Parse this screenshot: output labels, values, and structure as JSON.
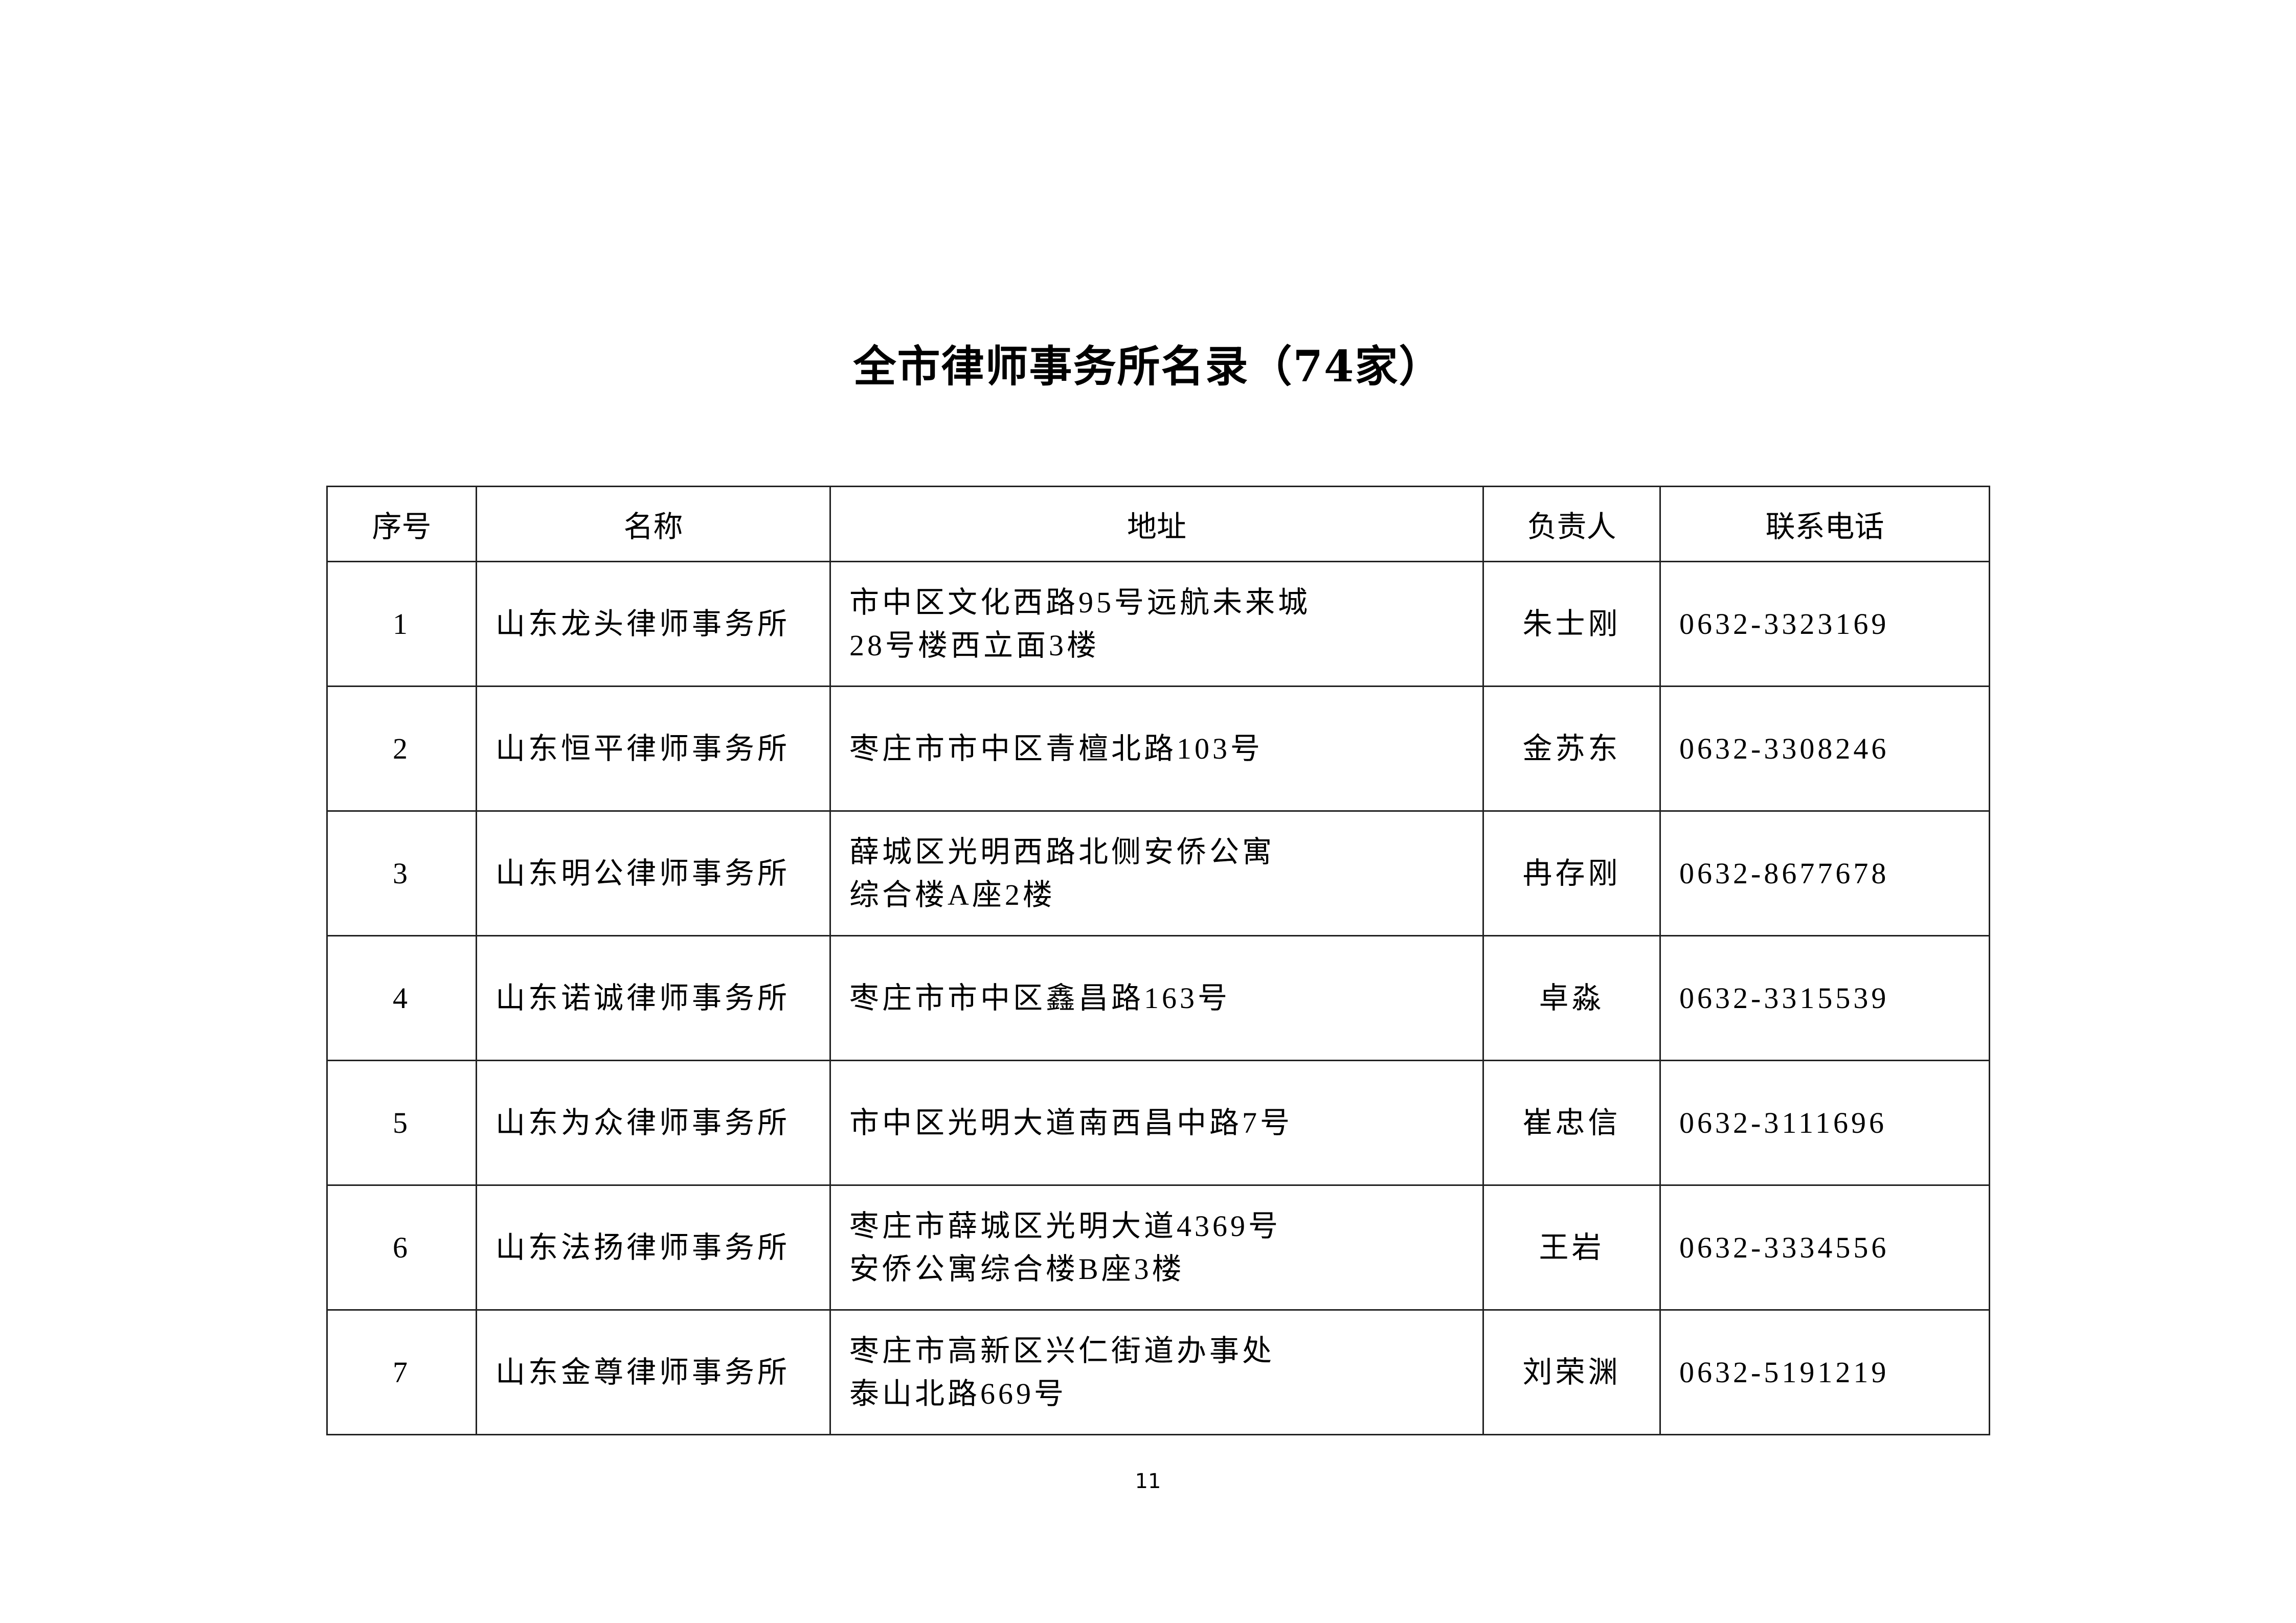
{
  "title": "全市律师事务所名录（74家）",
  "table": {
    "headers": [
      "序号",
      "名称",
      "地址",
      "负责人",
      "联系电话"
    ],
    "rows": [
      {
        "no": "1",
        "name": "山东龙头律师事务所",
        "address": [
          "市中区文化西路95号远航未来城",
          "28号楼西立面3楼"
        ],
        "head": "朱士刚",
        "phone": "0632-3323169"
      },
      {
        "no": "2",
        "name": "山东恒平律师事务所",
        "address": [
          "枣庄市市中区青檀北路103号"
        ],
        "head": "金苏东",
        "phone": "0632-3308246"
      },
      {
        "no": "3",
        "name": "山东明公律师事务所",
        "address": [
          "薛城区光明西路北侧安侨公寓",
          "综合楼A座2楼"
        ],
        "head": "冉存刚",
        "phone": "0632-8677678"
      },
      {
        "no": "4",
        "name": "山东诺诚律师事务所",
        "address": [
          "枣庄市市中区鑫昌路163号"
        ],
        "head": "卓淼",
        "phone": "0632-3315539"
      },
      {
        "no": "5",
        "name": "山东为众律师事务所",
        "address": [
          "市中区光明大道南西昌中路7号"
        ],
        "head": "崔忠信",
        "phone": "0632-3111696"
      },
      {
        "no": "6",
        "name": "山东法扬律师事务所",
        "address": [
          "枣庄市薛城区光明大道4369号",
          "安侨公寓综合楼B座3楼"
        ],
        "head": "王岩",
        "phone": "0632-3334556"
      },
      {
        "no": "7",
        "name": "山东金尊律师事务所",
        "address": [
          "枣庄市高新区兴仁街道办事处",
          "泰山北路669号"
        ],
        "head": "刘荣渊",
        "phone": "0632-5191219"
      }
    ]
  },
  "page_number": "11"
}
